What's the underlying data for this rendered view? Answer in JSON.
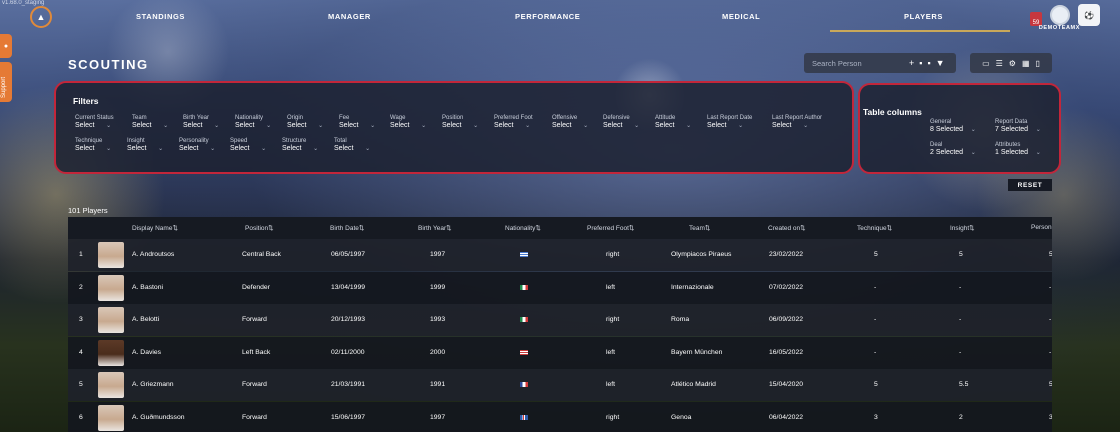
{
  "version": "v1.68.0_staging",
  "nav": [
    "STANDINGS",
    "MANAGER",
    "PERFORMANCE",
    "MEDICAL",
    "PLAYERS"
  ],
  "notifications": "59",
  "team_name": "DEMOTEAMX",
  "side_tab_label": "Support",
  "page_title": "SCOUTING",
  "search_placeholder": "Search Person",
  "filters_title": "Filters",
  "filters_row1": [
    "Current Status",
    "Team",
    "Birth Year",
    "Nationality",
    "Origin",
    "Fee",
    "Wage",
    "Position",
    "Preferred Foot",
    "Offensive",
    "Defensive",
    "Attitude",
    "Last Report Date",
    "Last Report Author"
  ],
  "filters_row2": [
    "Technique",
    "Insight",
    "Personality",
    "Speed",
    "Structure",
    "Total"
  ],
  "select_label": "Select",
  "columns_title": "Table columns",
  "columns": [
    {
      "label": "General",
      "value": "8 Selected"
    },
    {
      "label": "Report Data",
      "value": "7 Selected"
    },
    {
      "label": "Deal",
      "value": "2 Selected"
    },
    {
      "label": "Attributes",
      "value": "1 Selected"
    }
  ],
  "reset_label": "RESET",
  "player_count": "101 Players",
  "headers": [
    "Display Name⇅",
    "Position⇅",
    "Birth Date⇅",
    "Birth Year⇅",
    "Nationality⇅",
    "Preferred Foot⇅",
    "Team⇅",
    "Created on⇅",
    "Technique⇅",
    "Insight⇅",
    "Person"
  ],
  "rows": [
    {
      "n": "1",
      "name": "A. Androutsos",
      "pos": "Central Back",
      "bdate": "06/05/1997",
      "byear": "1997",
      "flag": "greece",
      "foot": "right",
      "team": "Olympiacos Piraeus",
      "created": "23/02/2022",
      "tech": "5",
      "ins": "5",
      "pers": "5"
    },
    {
      "n": "2",
      "name": "A. Bastoni",
      "pos": "Defender",
      "bdate": "13/04/1999",
      "byear": "1999",
      "flag": "italy",
      "foot": "left",
      "team": "Internazionale",
      "created": "07/02/2022",
      "tech": "-",
      "ins": "-",
      "pers": "-"
    },
    {
      "n": "3",
      "name": "A. Belotti",
      "pos": "Forward",
      "bdate": "20/12/1993",
      "byear": "1993",
      "flag": "italy",
      "foot": "right",
      "team": "Roma",
      "created": "06/09/2022",
      "tech": "-",
      "ins": "-",
      "pers": "-"
    },
    {
      "n": "4",
      "name": "A. Davies",
      "pos": "Left Back",
      "bdate": "02/11/2000",
      "byear": "2000",
      "flag": "usa",
      "foot": "left",
      "team": "Bayern München",
      "created": "16/05/2022",
      "tech": "-",
      "ins": "-",
      "pers": "-"
    },
    {
      "n": "5",
      "name": "A. Griezmann",
      "pos": "Forward",
      "bdate": "21/03/1991",
      "byear": "1991",
      "flag": "france",
      "foot": "left",
      "team": "Atlético Madrid",
      "created": "15/04/2020",
      "tech": "5",
      "ins": "5.5",
      "pers": "5"
    },
    {
      "n": "6",
      "name": "A. Guðmundsson",
      "pos": "Forward",
      "bdate": "15/06/1997",
      "byear": "1997",
      "flag": "iceland",
      "foot": "right",
      "team": "Genoa",
      "created": "06/04/2022",
      "tech": "3",
      "ins": "2",
      "pers": "3"
    }
  ],
  "colors": {
    "accent": "#c2263a",
    "nav_underline": "#c9a85a",
    "side_tab": "#e57a35"
  }
}
